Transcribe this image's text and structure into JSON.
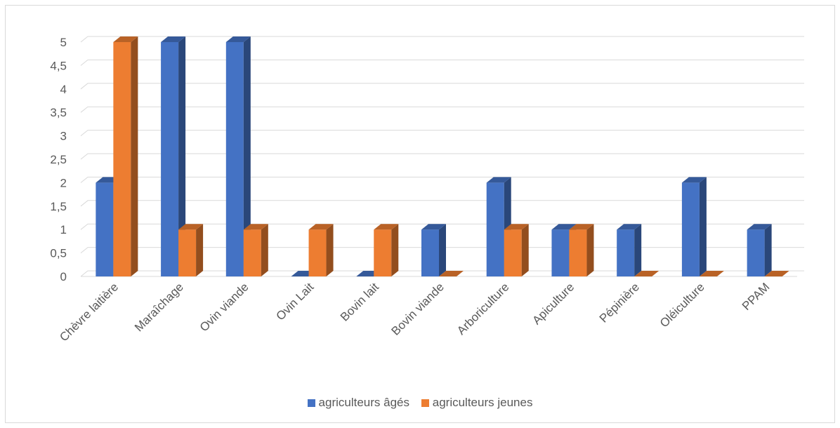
{
  "chart_data": {
    "type": "bar",
    "style": "3d-clustered-column",
    "categories": [
      "Chèvre laitière",
      "Maraîchage",
      "Ovin viande",
      "Ovin Lait",
      "Bovin lait",
      "Bovin viande",
      "Arboriculture",
      "Apiculture",
      "Pépinière",
      "Oléiculture",
      "PPAM"
    ],
    "series": [
      {
        "name": "agriculteurs âgés",
        "color": "#4472C4",
        "values": [
          2,
          5,
          5,
          0,
          0,
          1,
          2,
          1,
          1,
          2,
          1
        ]
      },
      {
        "name": "agriculteurs jeunes",
        "color": "#ED7D31",
        "values": [
          5,
          1,
          1,
          1,
          1,
          0,
          1,
          1,
          0,
          0,
          0
        ]
      }
    ],
    "ylim": [
      0,
      5
    ],
    "yticks": [
      "0",
      "0,5",
      "1",
      "1,5",
      "2",
      "2,5",
      "3",
      "3,5",
      "4",
      "4,5",
      "5"
    ],
    "grid": true,
    "legend_position": "bottom"
  }
}
